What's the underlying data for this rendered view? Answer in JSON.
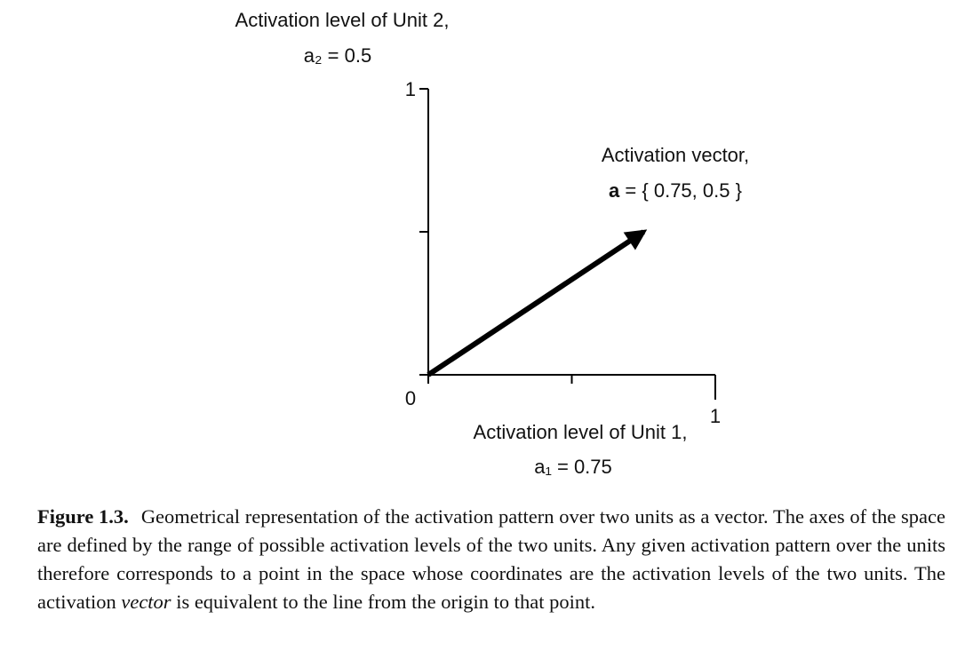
{
  "chart_data": {
    "type": "vector",
    "y_label": [
      "Activation level of Unit 2,",
      "a₂ = 0.5"
    ],
    "x_label": [
      "Activation level of Unit 1,",
      "a₁ = 0.75"
    ],
    "vector_label": "Activation vector,",
    "vector_symbol": "a",
    "vector_text": "= { 0.75, 0.5 }",
    "vector": [
      0.75,
      0.5
    ],
    "color": "#000000",
    "xlim": [
      0,
      1
    ],
    "ylim": [
      0,
      1
    ],
    "xticks": [
      0,
      {
        "value": 0.5,
        "label": null
      },
      1
    ],
    "yticks": [
      {
        "value": 0,
        "label": null
      },
      {
        "value": 0.5,
        "label": null
      },
      1
    ]
  },
  "caption": {
    "label": "Figure 1.3.",
    "text_before": "Geometrical representation of the activation pattern over two units as a vector. The axes of the space are defined by the range of possible activation levels of the two units. Any given activation pattern over the units therefore corresponds to a point in the space whose coordinates are the activation levels of the two units. The activation ",
    "emphasis": "vector",
    "text_after": " is equivalent to the line from the origin to that point."
  }
}
